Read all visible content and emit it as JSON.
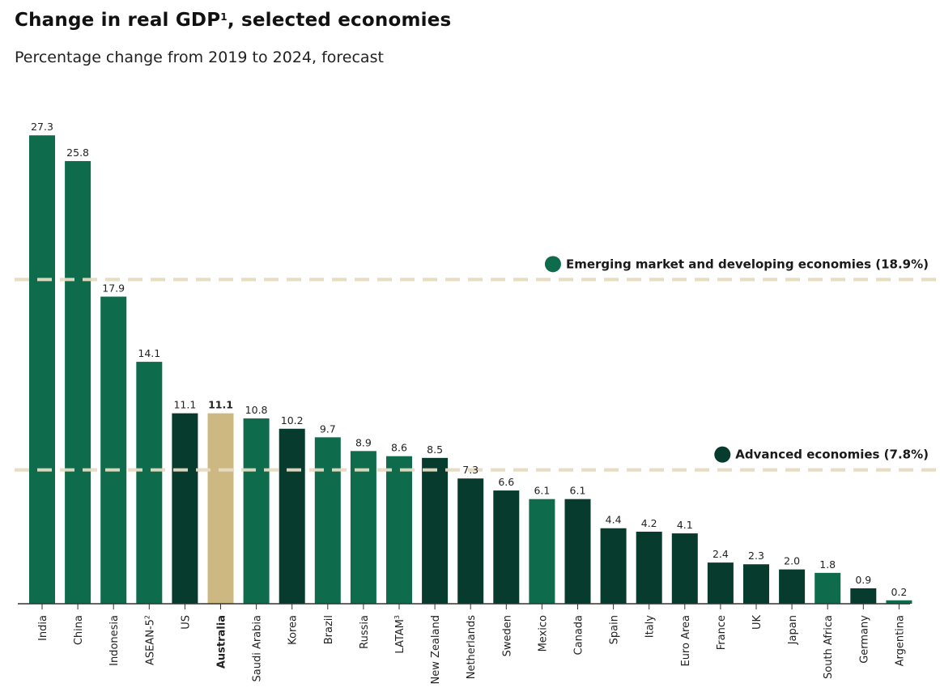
{
  "title": "Change in real GDP",
  "title_footnote": "1",
  "subtitle": "Percentage change from 2019 to 2024, forecast",
  "colors": {
    "emerging": "#0e6b4c",
    "advanced": "#073b2e",
    "highlight": "#cdb882",
    "reference_line": "#e8dcc3",
    "axis": "#333333"
  },
  "chart_data": {
    "type": "bar",
    "title": "Change in real GDP, selected economies",
    "subtitle": "Percentage change from 2019 to 2024, forecast",
    "xlabel": "",
    "ylabel": "",
    "ylim": [
      0,
      28
    ],
    "categories": [
      "India",
      "China",
      "Indonesia",
      "ASEAN-5",
      "US",
      "Australia",
      "Saudi Arabia",
      "Korea",
      "Brazil",
      "Russia",
      "LATAM",
      "New Zealand",
      "Netherlands",
      "Sweden",
      "Mexico",
      "Canada",
      "Spain",
      "Italy",
      "Euro Area",
      "France",
      "UK",
      "Japan",
      "South Africa",
      "Germany",
      "Argentina"
    ],
    "footnotes": [
      "",
      "",
      "",
      "2",
      "",
      "",
      "",
      "",
      "",
      "",
      "3",
      "",
      "",
      "",
      "",
      "",
      "",
      "",
      "",
      "",
      "",
      "",
      "",
      "",
      ""
    ],
    "values": [
      27.3,
      25.8,
      17.9,
      14.1,
      11.1,
      11.1,
      10.8,
      10.2,
      9.7,
      8.9,
      8.6,
      8.5,
      7.3,
      6.6,
      6.1,
      6.1,
      4.4,
      4.2,
      4.1,
      2.4,
      2.3,
      2.0,
      1.8,
      0.9,
      0.2
    ],
    "value_labels": [
      "27.3",
      "25.8",
      "17.9",
      "14.1",
      "11.1",
      "11.1",
      "10.8",
      "10.2",
      "9.7",
      "8.9",
      "8.6",
      "8.5",
      "7.3",
      "6.6",
      "6.1",
      "6.1",
      "4.4",
      "4.2",
      "4.1",
      "2.4",
      "2.3",
      "2.0",
      "1.8",
      "0.9",
      "0.2"
    ],
    "groups": [
      "emerging",
      "emerging",
      "emerging",
      "emerging",
      "advanced",
      "highlight",
      "emerging",
      "advanced",
      "emerging",
      "emerging",
      "emerging",
      "advanced",
      "advanced",
      "advanced",
      "emerging",
      "advanced",
      "advanced",
      "advanced",
      "advanced",
      "advanced",
      "advanced",
      "advanced",
      "emerging",
      "advanced",
      "emerging"
    ],
    "reference_lines": [
      {
        "label": "Emerging market and developing economies (18.9%)",
        "value": 18.9,
        "group": "emerging"
      },
      {
        "label": "Advanced economies (7.8%)",
        "value": 7.8,
        "group": "advanced"
      }
    ],
    "grid": false,
    "legend": "inline at right of reference lines"
  }
}
